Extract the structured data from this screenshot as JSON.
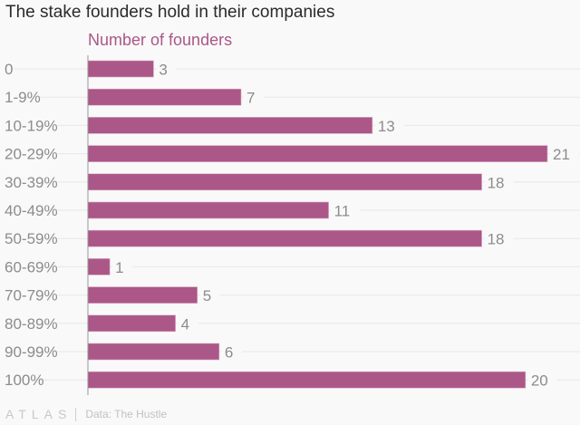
{
  "header": {
    "title": "The stake founders hold in their companies",
    "subtitle": "Number of founders"
  },
  "footer": {
    "logo": "ATLAS",
    "source": "Data: The Hustle"
  },
  "colors": {
    "bar": "#ab5787",
    "text": "#8c8c8c",
    "grid": "#e8e8e8",
    "axis": "#999999"
  },
  "chart_data": {
    "type": "bar",
    "orientation": "horizontal",
    "title": "The stake founders hold in their companies",
    "xlabel": "Number of founders",
    "ylabel": "",
    "categories": [
      "0",
      "1-9%",
      "10-19%",
      "20-29%",
      "30-39%",
      "40-49%",
      "50-59%",
      "60-69%",
      "70-79%",
      "80-89%",
      "90-99%",
      "100%"
    ],
    "values": [
      3,
      7,
      13,
      21,
      18,
      11,
      18,
      1,
      5,
      4,
      6,
      20
    ],
    "xlim": [
      0,
      21
    ],
    "grid": true,
    "legend": "none",
    "data_labels": true
  }
}
